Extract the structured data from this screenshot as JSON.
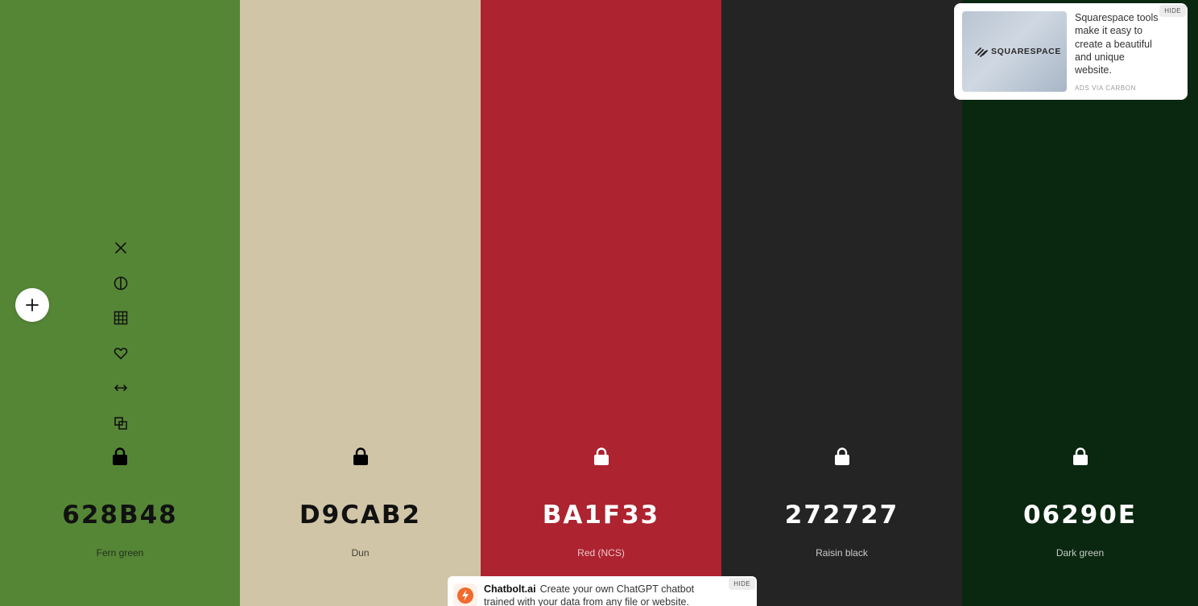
{
  "palette": [
    {
      "hex": "628B48",
      "name": "Fern green",
      "color": "#558636",
      "text_color": "#111111",
      "icon_color": "#000000",
      "width": 298
    },
    {
      "hex": "D9CAB2",
      "name": "Dun",
      "color": "#D0C5A7",
      "text_color": "#111111",
      "icon_color": "#000000",
      "width": 299
    },
    {
      "hex": "BA1F33",
      "name": "Red (NCS)",
      "color": "#AD2330",
      "text_color": "#ffffff",
      "icon_color": "#ffffff",
      "width": 299
    },
    {
      "hex": "272727",
      "name": "Raisin black",
      "color": "#242424",
      "text_color": "#ffffff",
      "icon_color": "#ffffff",
      "width": 299
    },
    {
      "hex": "06290E",
      "name": "Dark green",
      "color": "#0A2710",
      "text_color": "#ffffff",
      "icon_color": "#ffffff",
      "width": 293
    }
  ],
  "tools": [
    "close-icon",
    "contrast-icon",
    "shades-grid-icon",
    "heart-icon",
    "drag-arrows-icon",
    "copy-icon"
  ],
  "add_button": "plus-icon",
  "ad": {
    "logo": "SQUARESPACE",
    "text": "Squarespace tools make it easy to create a beautiful and unique website.",
    "via": "ADS VIA CARBON",
    "hide": "HIDE"
  },
  "bottom_ad": {
    "brand": "Chatbolt.ai",
    "text": "Create your own ChatGPT chatbot trained with your data from any file or website.",
    "hide": "HIDE"
  }
}
